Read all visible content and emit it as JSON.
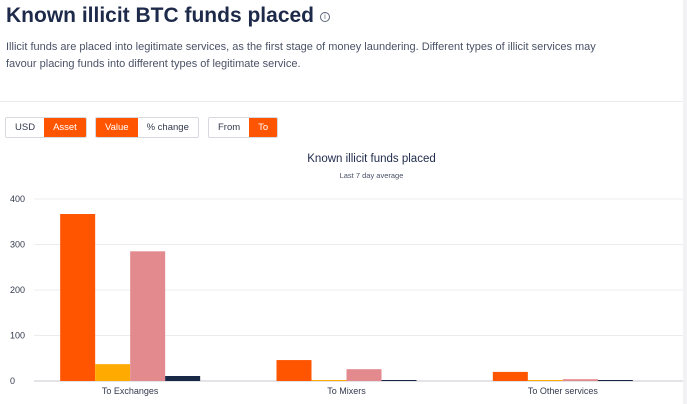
{
  "header": {
    "title": "Known illicit BTC funds placed",
    "info_icon": "info-icon",
    "description": "Illicit funds are placed into legitimate services, as the first stage of money laundering. Different types of illicit services may favour placing funds into different types of legitimate service."
  },
  "toggles": {
    "unit": {
      "options": [
        "USD",
        "Asset"
      ],
      "selected": "Asset"
    },
    "metric": {
      "options": [
        "Value",
        "% change"
      ],
      "selected": "Value"
    },
    "direction": {
      "options": [
        "From",
        "To"
      ],
      "selected": "To"
    }
  },
  "chart_data": {
    "type": "bar",
    "title": "Known illicit funds placed",
    "subtitle": "Last 7 day average",
    "categories": [
      "To Exchanges",
      "To Mixers",
      "To Other services"
    ],
    "series": [
      {
        "values": [
          367,
          46,
          20
        ],
        "color": "#ff5400"
      },
      {
        "values": [
          37,
          2,
          2
        ],
        "color": "#ffaa00"
      },
      {
        "values": [
          285,
          26,
          4
        ],
        "color": "#e38a8f"
      },
      {
        "values": [
          11,
          2,
          1
        ],
        "color": "#1a2848"
      }
    ],
    "yticks": [
      0,
      100,
      200,
      300,
      400
    ],
    "ylim": [
      0,
      400
    ],
    "grid": true,
    "legend": "none"
  }
}
